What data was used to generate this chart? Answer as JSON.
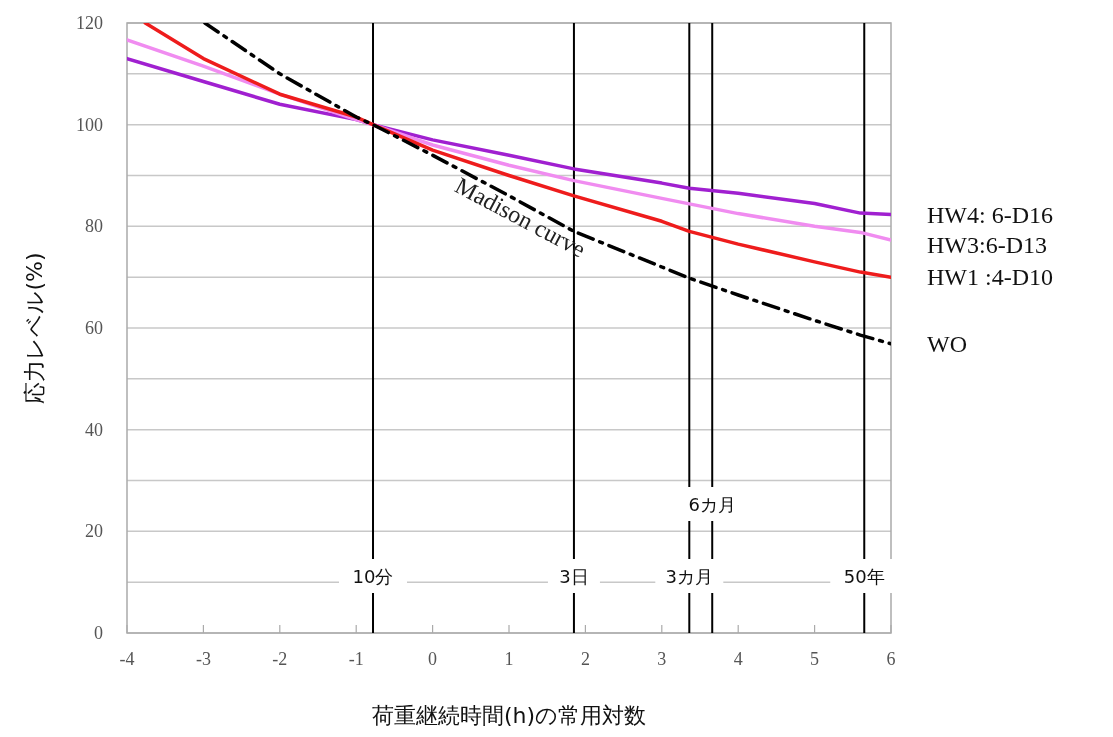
{
  "chart_data": {
    "type": "line",
    "xlabel": "荷重継続時間(h)の常用対数",
    "ylabel": "応力レベル(%)",
    "xlim": [
      -4,
      6
    ],
    "xticks": [
      -4,
      -3,
      -2,
      -1,
      0,
      1,
      2,
      3,
      4,
      5,
      6
    ],
    "ylim": [
      0,
      120
    ],
    "yticks": [
      0,
      {
        "value": 10,
        "label": null
      },
      20,
      {
        "value": 30,
        "label": null
      },
      40,
      {
        "value": 50,
        "label": null
      },
      60,
      {
        "value": 70,
        "label": null
      },
      80,
      {
        "value": 90,
        "label": null
      },
      100,
      {
        "value": 110,
        "label": null
      },
      120
    ],
    "grid": "y",
    "line_style": "solid",
    "marker": "none",
    "series": [
      {
        "name": "HW4: 6-D16",
        "color": "#a020d0",
        "x": [
          -4,
          -3,
          -2,
          -1,
          -0.78,
          0,
          1,
          1.85,
          3,
          3.36,
          4,
          5,
          5.6,
          6
        ],
        "values": [
          113,
          108.5,
          104,
          101,
          100,
          97,
          94,
          91.3,
          88.5,
          87.5,
          86.5,
          84.5,
          82.6,
          82.3
        ]
      },
      {
        "name": "HW3:6-D13",
        "color": "#f08cf0",
        "x": [
          -4,
          -3,
          -2,
          -1,
          -0.78,
          0,
          1,
          1.85,
          3,
          4,
          5,
          5.6,
          6
        ],
        "values": [
          116.7,
          111.5,
          106,
          101,
          100,
          96,
          92,
          89,
          85.5,
          82.5,
          80,
          78.8,
          77.3
        ]
      },
      {
        "name": "HW1 :4-D10",
        "color": "#ee1c1c",
        "x": [
          -3.76,
          -3,
          -2,
          -1,
          -0.78,
          0,
          1,
          1.85,
          3,
          3.36,
          4,
          5,
          5.6,
          6
        ],
        "values": [
          120,
          113,
          106,
          101.5,
          100,
          95,
          90,
          86,
          81,
          79,
          76.5,
          73,
          71,
          70
        ]
      },
      {
        "name": "WO",
        "color": "#000000",
        "line_style": "dashdot",
        "x": [
          -2.98,
          -2,
          -1,
          -0.78,
          0,
          1,
          1.85,
          3,
          3.36,
          4,
          5,
          5.6,
          6
        ],
        "values": [
          120,
          110,
          101.5,
          100,
          94,
          86,
          79,
          72,
          69.8,
          66.5,
          61.5,
          58.6,
          56.9
        ]
      }
    ],
    "ref_lines": [
      {
        "axis": "x",
        "value": -0.78,
        "label": "10分",
        "color": "#000000"
      },
      {
        "axis": "x",
        "value": 1.85,
        "label": "3日",
        "color": "#000000"
      },
      {
        "axis": "x",
        "value": 3.36,
        "label": "3カ月",
        "color": "#000000"
      },
      {
        "axis": "x",
        "value": 3.66,
        "label": "6カ月",
        "color": "#000000"
      },
      {
        "axis": "x",
        "value": 5.65,
        "label": "50年",
        "color": "#000000"
      }
    ],
    "annotations": [
      "Madison curve"
    ]
  }
}
